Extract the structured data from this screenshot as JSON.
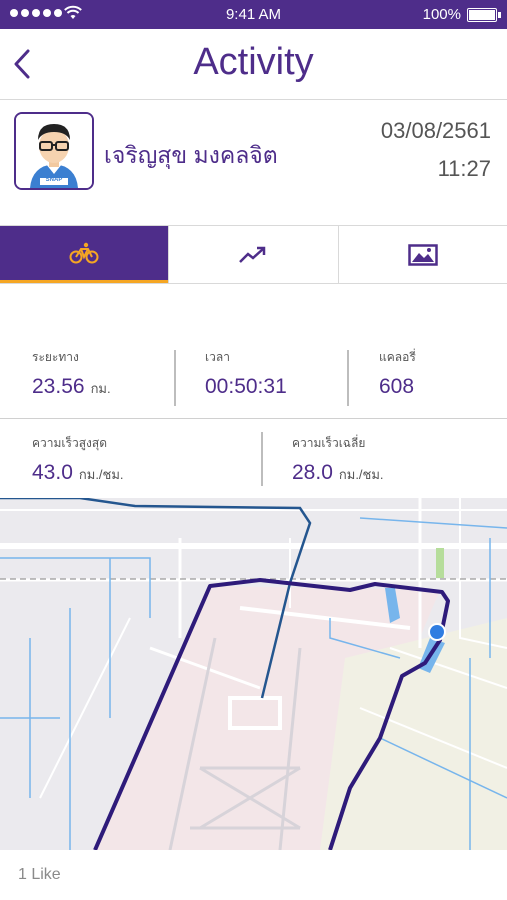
{
  "status_bar": {
    "time": "9:41 AM",
    "battery": "100%"
  },
  "header": {
    "title": "Activity"
  },
  "profile": {
    "name": "เจริญสุข มงคลจิต",
    "date": "03/08/2561",
    "time": "11:27",
    "avatar_badge": "SNAP"
  },
  "tabs": [
    {
      "name": "ride",
      "icon": "bicycle-icon",
      "active": true
    },
    {
      "name": "chart",
      "icon": "trend-chart-icon",
      "active": false
    },
    {
      "name": "photos",
      "icon": "image-icon",
      "active": false
    }
  ],
  "stats": {
    "distance": {
      "label": "ระยะทาง",
      "value": "23.56",
      "unit": "กม."
    },
    "duration": {
      "label": "เวลา",
      "value": "00:50:31"
    },
    "calories": {
      "label": "แคลอรี่",
      "value": "608"
    },
    "max_speed": {
      "label": "ความเร็วสูงสุด",
      "value": "43.0",
      "unit": "กม./ชม."
    },
    "avg_speed": {
      "label": "ความเร็วเฉลี่ย",
      "value": "28.0",
      "unit": "กม./ชม."
    }
  },
  "likes": "1 Like",
  "colors": {
    "primary": "#4e2d8a",
    "accent": "#f5a623",
    "route": "#2e1b7a",
    "location": "#2f7de1"
  }
}
